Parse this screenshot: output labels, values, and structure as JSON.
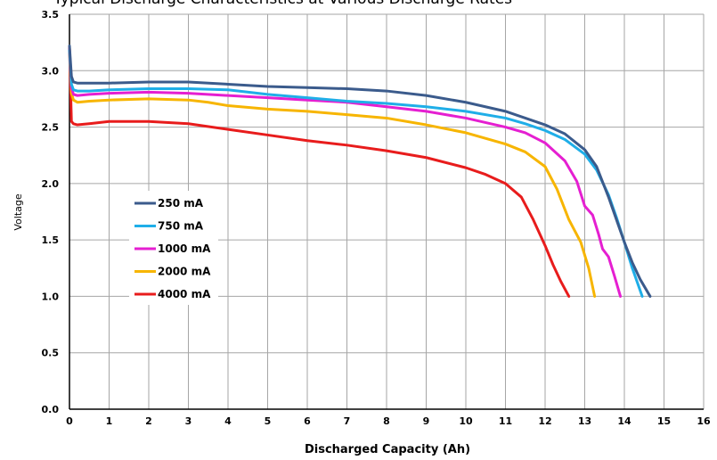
{
  "chart_data": {
    "type": "line",
    "title": "Typical Discharge Characteristics at Various Discharge Rates",
    "xlabel": "Discharged Capacity (Ah)",
    "ylabel": "Voltage",
    "xlim": [
      0,
      16
    ],
    "ylim": [
      0.0,
      3.5
    ],
    "xticks": [
      "0",
      "1",
      "2",
      "3",
      "4",
      "5",
      "6",
      "7",
      "8",
      "9",
      "10",
      "11",
      "12",
      "13",
      "14",
      "15",
      "16"
    ],
    "yticks": [
      "0.0",
      "0.5",
      "1.0",
      "1.5",
      "2.0",
      "2.5",
      "3.0",
      "3.5"
    ],
    "grid": true,
    "legend_position": "center-left",
    "series": [
      {
        "name": "250 mA",
        "color": "#3b5b8c",
        "x": [
          0.0,
          0.05,
          0.1,
          0.2,
          0.5,
          1.0,
          2.0,
          3.0,
          4.0,
          5.0,
          6.0,
          7.0,
          8.0,
          9.0,
          10.0,
          11.0,
          11.5,
          12.0,
          12.5,
          13.0,
          13.3,
          13.6,
          13.8,
          14.0,
          14.2,
          14.4,
          14.65
        ],
        "y": [
          3.22,
          2.95,
          2.9,
          2.89,
          2.89,
          2.89,
          2.9,
          2.9,
          2.88,
          2.86,
          2.85,
          2.84,
          2.82,
          2.78,
          2.72,
          2.64,
          2.58,
          2.52,
          2.44,
          2.3,
          2.15,
          1.88,
          1.68,
          1.48,
          1.3,
          1.15,
          1.0
        ]
      },
      {
        "name": "750 mA",
        "color": "#1faee8",
        "x": [
          0.0,
          0.05,
          0.1,
          0.2,
          0.5,
          1.0,
          2.0,
          3.0,
          4.0,
          5.0,
          6.0,
          7.0,
          8.0,
          9.0,
          10.0,
          11.0,
          11.5,
          12.0,
          12.5,
          13.0,
          13.3,
          13.6,
          13.8,
          14.0,
          14.2,
          14.45
        ],
        "y": [
          3.18,
          2.88,
          2.83,
          2.82,
          2.82,
          2.83,
          2.84,
          2.84,
          2.83,
          2.79,
          2.76,
          2.73,
          2.71,
          2.68,
          2.64,
          2.58,
          2.53,
          2.47,
          2.39,
          2.26,
          2.12,
          1.9,
          1.7,
          1.48,
          1.25,
          1.0
        ]
      },
      {
        "name": "1000 mA",
        "color": "#e51fd1",
        "x": [
          0.0,
          0.05,
          0.1,
          0.2,
          0.5,
          1.0,
          2.0,
          3.0,
          4.0,
          5.0,
          6.0,
          7.0,
          8.0,
          9.0,
          10.0,
          11.0,
          11.5,
          12.0,
          12.5,
          12.8,
          13.0,
          13.2,
          13.35,
          13.45,
          13.6,
          13.75,
          13.9
        ],
        "y": [
          3.2,
          2.85,
          2.79,
          2.78,
          2.79,
          2.8,
          2.81,
          2.8,
          2.78,
          2.76,
          2.74,
          2.72,
          2.68,
          2.64,
          2.58,
          2.5,
          2.45,
          2.36,
          2.2,
          2.02,
          1.8,
          1.72,
          1.55,
          1.42,
          1.35,
          1.18,
          1.0
        ]
      },
      {
        "name": "2000 mA",
        "color": "#f7b500",
        "x": [
          0.0,
          0.05,
          0.1,
          0.2,
          0.5,
          1.0,
          2.0,
          3.0,
          3.5,
          4.0,
          5.0,
          6.0,
          7.0,
          8.0,
          9.0,
          10.0,
          11.0,
          11.5,
          12.0,
          12.3,
          12.6,
          12.9,
          13.1,
          13.25
        ],
        "y": [
          3.2,
          2.8,
          2.74,
          2.72,
          2.73,
          2.74,
          2.75,
          2.74,
          2.72,
          2.69,
          2.66,
          2.64,
          2.61,
          2.58,
          2.52,
          2.45,
          2.35,
          2.28,
          2.15,
          1.95,
          1.68,
          1.48,
          1.25,
          1.0
        ]
      },
      {
        "name": "4000 mA",
        "color": "#e81c1c",
        "x": [
          0.0,
          0.05,
          0.1,
          0.2,
          0.5,
          1.0,
          2.0,
          3.0,
          4.0,
          5.0,
          6.0,
          7.0,
          8.0,
          9.0,
          10.0,
          10.5,
          11.0,
          11.4,
          11.7,
          12.0,
          12.2,
          12.4,
          12.6
        ],
        "y": [
          3.2,
          2.55,
          2.53,
          2.52,
          2.53,
          2.55,
          2.55,
          2.53,
          2.48,
          2.43,
          2.38,
          2.34,
          2.29,
          2.23,
          2.14,
          2.08,
          2.0,
          1.88,
          1.68,
          1.45,
          1.28,
          1.13,
          1.0
        ]
      }
    ]
  }
}
